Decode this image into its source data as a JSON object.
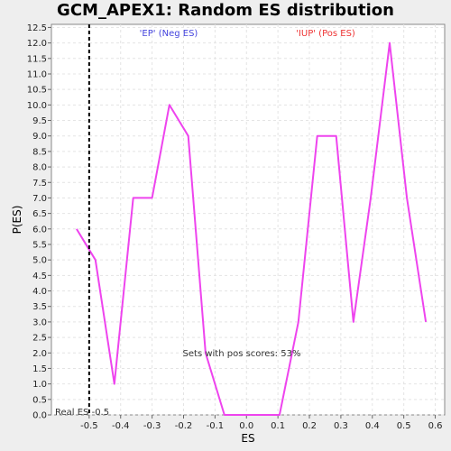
{
  "chart_data": {
    "type": "line",
    "title": "GCM_APEX1: Random ES distribution",
    "xlabel": "ES",
    "ylabel": "P(ES)",
    "xlim": [
      -0.62,
      0.63
    ],
    "ylim": [
      0,
      12.6
    ],
    "x_ticks": [
      -0.5,
      -0.4,
      -0.3,
      -0.2,
      -0.1,
      0.0,
      0.1,
      0.2,
      0.3,
      0.4,
      0.5,
      0.6
    ],
    "x_tick_labels": [
      "-0.5",
      "-0.4",
      "-0.3",
      "-0.2",
      "-0.1",
      "0.0",
      "0.1",
      "0.2",
      "0.3",
      "0.4",
      "0.5",
      "0.6"
    ],
    "y_ticks": [
      0,
      0.5,
      1,
      1.5,
      2,
      2.5,
      3,
      3.5,
      4,
      4.5,
      5,
      5.5,
      6,
      6.5,
      7,
      7.5,
      8,
      8.5,
      9,
      9.5,
      10,
      10.5,
      11,
      11.5,
      12,
      12.5
    ],
    "y_tick_labels": [
      "0.0",
      "0.5",
      "1.0",
      "1.5",
      "2.0",
      "2.5",
      "3.0",
      "3.5",
      "4.0",
      "4.5",
      "5.0",
      "5.5",
      "6.0",
      "6.5",
      "7.0",
      "7.5",
      "8.0",
      "8.5",
      "9.0",
      "9.5",
      "10.0",
      "10.5",
      "11.0",
      "11.5",
      "12.0",
      "12.5"
    ],
    "grid": true,
    "series": [
      {
        "color": "#ee44ee",
        "x": [
          -0.54,
          -0.48,
          -0.42,
          -0.36,
          -0.3,
          -0.245,
          -0.185,
          -0.13,
          -0.07,
          0.05,
          0.105,
          0.165,
          0.225,
          0.285,
          0.34,
          0.395,
          0.455,
          0.51,
          0.57
        ],
        "y": [
          6.0,
          5.0,
          1.0,
          7.0,
          7.0,
          10.0,
          9.0,
          2.0,
          0.0,
          0.0,
          0.0,
          3.0,
          9.0,
          9.0,
          3.0,
          7.0,
          12.0,
          7.0,
          3.0
        ]
      }
    ],
    "real_es": -0.5,
    "real_es_label": "Real ES -0.5",
    "neg_label": "'EP' (Neg ES)",
    "neg_color": "#4444dd",
    "pos_label": "'IUP' (Pos ES)",
    "pos_color": "#ee3333",
    "pos_scores_label": "Sets with pos scores: 53%"
  }
}
